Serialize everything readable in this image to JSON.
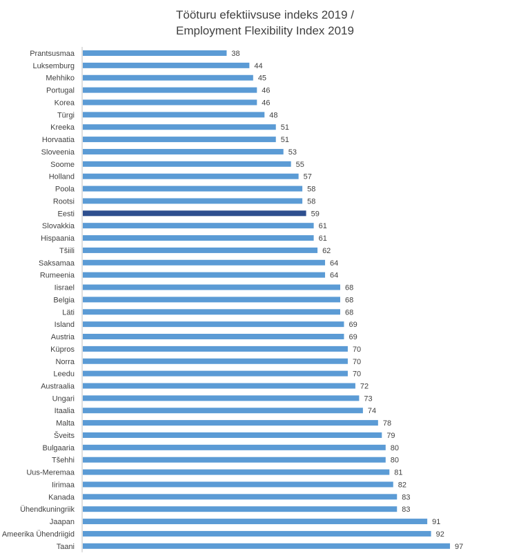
{
  "chart_data": {
    "type": "bar",
    "orientation": "horizontal",
    "title_lines": [
      "Tööturu efektiivsuse indeks 2019 /",
      "Employment Flexibility Index 2019"
    ],
    "categories": [
      "Prantsusmaa",
      "Luksemburg",
      "Mehhiko",
      "Portugal",
      "Korea",
      "Türgi",
      "Kreeka",
      "Horvaatia",
      "Sloveenia",
      "Soome",
      "Holland",
      "Poola",
      "Rootsi",
      "Eesti",
      "Slovakkia",
      "Hispaania",
      "Tšiili",
      "Saksamaa",
      "Rumeenia",
      "Iisrael",
      "Belgia",
      "Läti",
      "Island",
      "Austria",
      "Küpros",
      "Norra",
      "Leedu",
      "Austraalia",
      "Ungari",
      "Itaalia",
      "Malta",
      "Šveits",
      "Bulgaaria",
      "Tšehhi",
      "Uus-Meremaa",
      "Iirimaa",
      "Kanada",
      "Ühendkuningriik",
      "Jaapan",
      "Ameerika Ühendriigid",
      "Taani"
    ],
    "values": [
      38,
      44,
      45,
      46,
      46,
      48,
      51,
      51,
      53,
      55,
      57,
      58,
      58,
      59,
      61,
      61,
      62,
      64,
      64,
      68,
      68,
      68,
      69,
      69,
      70,
      70,
      70,
      72,
      73,
      74,
      78,
      79,
      80,
      80,
      81,
      82,
      83,
      83,
      91,
      92,
      97
    ],
    "highlight_category": "Eesti",
    "colors": {
      "bar": "#5b9bd5",
      "highlight": "#2e4f8f",
      "axis": "#bfbfbf",
      "text": "#404040"
    },
    "data_labels": true,
    "grid": false,
    "legend": "none"
  }
}
